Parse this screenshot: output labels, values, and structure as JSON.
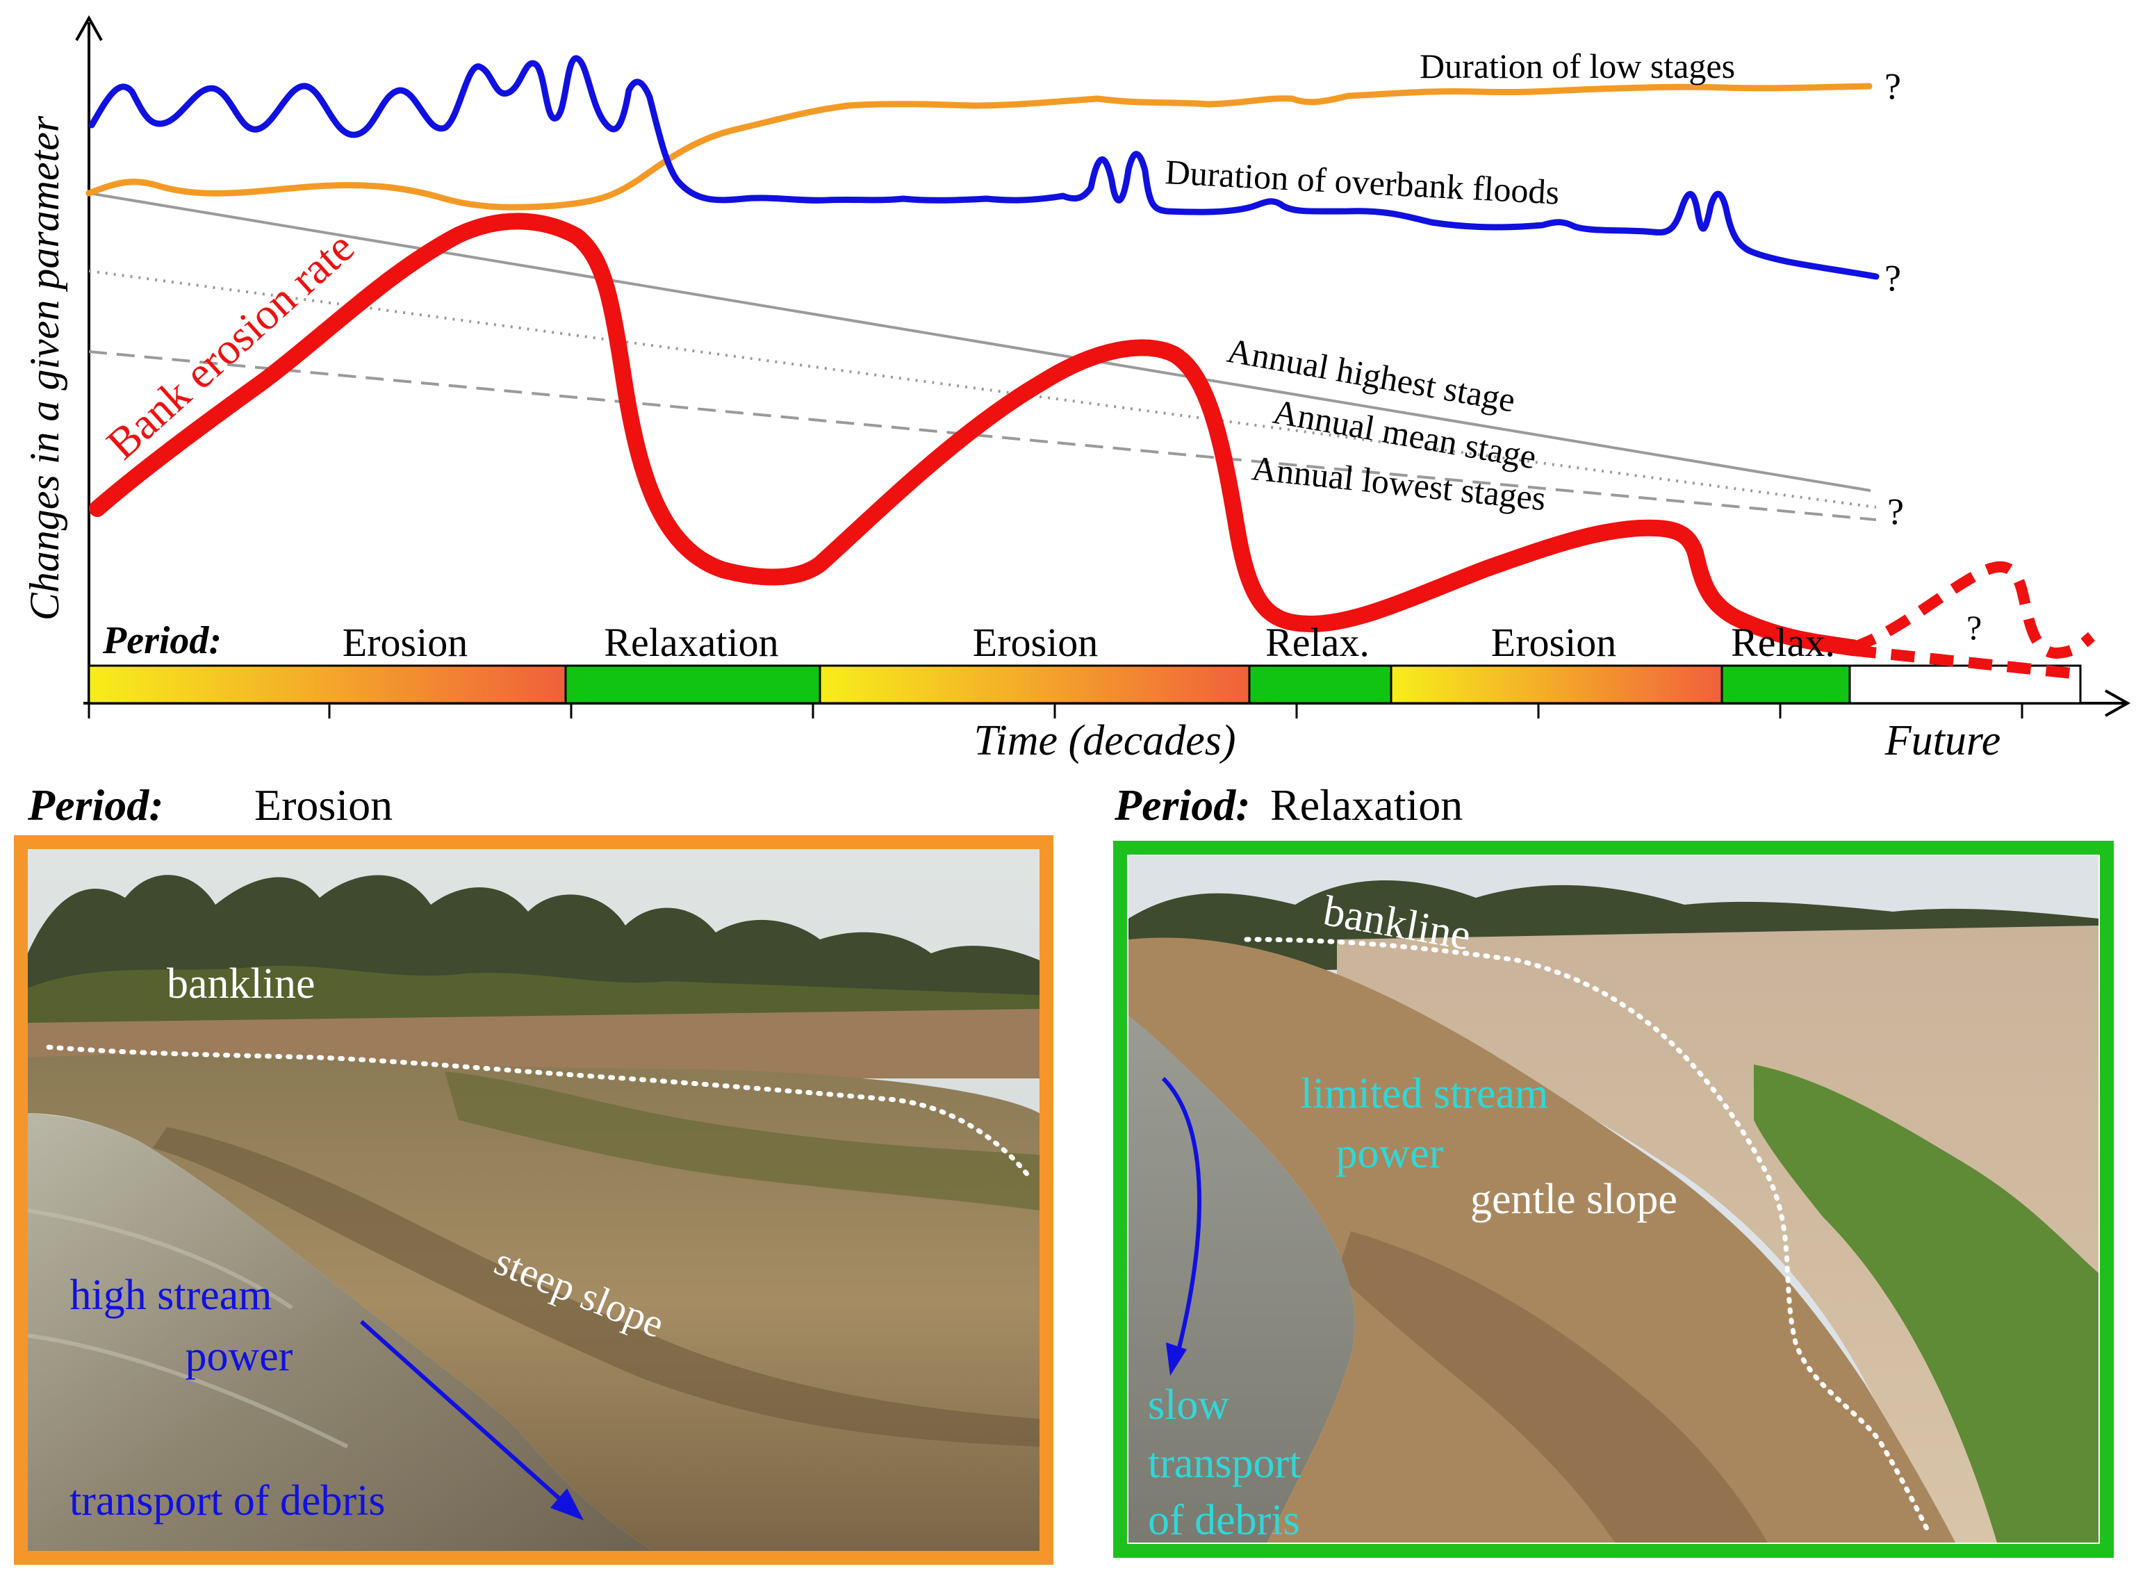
{
  "figure": {
    "y_axis_label": "Changes in a given parameter",
    "x_axis_label": "Time (decades)",
    "future_label": "Future",
    "period_label": "Period:",
    "question_mark": "?",
    "curves": {
      "low_stages": "Duration of low stages",
      "overbank": "Duration of overbank floods",
      "bank_erosion": "Bank erosion rate",
      "highest_stage": "Annual highest stage",
      "mean_stage": "Annual mean stage",
      "lowest_stages": "Annual lowest stages"
    },
    "periods": [
      {
        "name": "Erosion",
        "type": "erosion"
      },
      {
        "name": "Relaxation",
        "type": "relaxation"
      },
      {
        "name": "Erosion",
        "type": "erosion"
      },
      {
        "name": "Relax.",
        "type": "relaxation"
      },
      {
        "name": "Erosion",
        "type": "erosion"
      },
      {
        "name": "Relax.",
        "type": "relaxation"
      },
      {
        "name": "",
        "type": "future"
      }
    ],
    "colors": {
      "low_stages": "#f39a26",
      "overbank": "#1010e0",
      "bank_erosion": "#ef1010",
      "stage_lines": "#9a9a9a",
      "erosion_start": "#f7ee1a",
      "erosion_end": "#f0603a",
      "relaxation": "#12c412",
      "erosion_frame": "#f5962b",
      "relaxation_frame": "#1ec01e"
    }
  },
  "photos": {
    "erosion": {
      "period_label": "Period:",
      "period_name": "Erosion",
      "bankline": "bankline",
      "slope": "steep slope",
      "power_line1": "high stream",
      "power_line2": "power",
      "transport": "transport of debris"
    },
    "relaxation": {
      "period_label": "Period:",
      "period_name": "Relaxation",
      "bankline": "bankline",
      "power_line1": "limited stream",
      "power_line2": "power",
      "slope": "gentle slope",
      "transport_line1": "slow",
      "transport_line2": "transport",
      "transport_line3": "of debris"
    }
  }
}
